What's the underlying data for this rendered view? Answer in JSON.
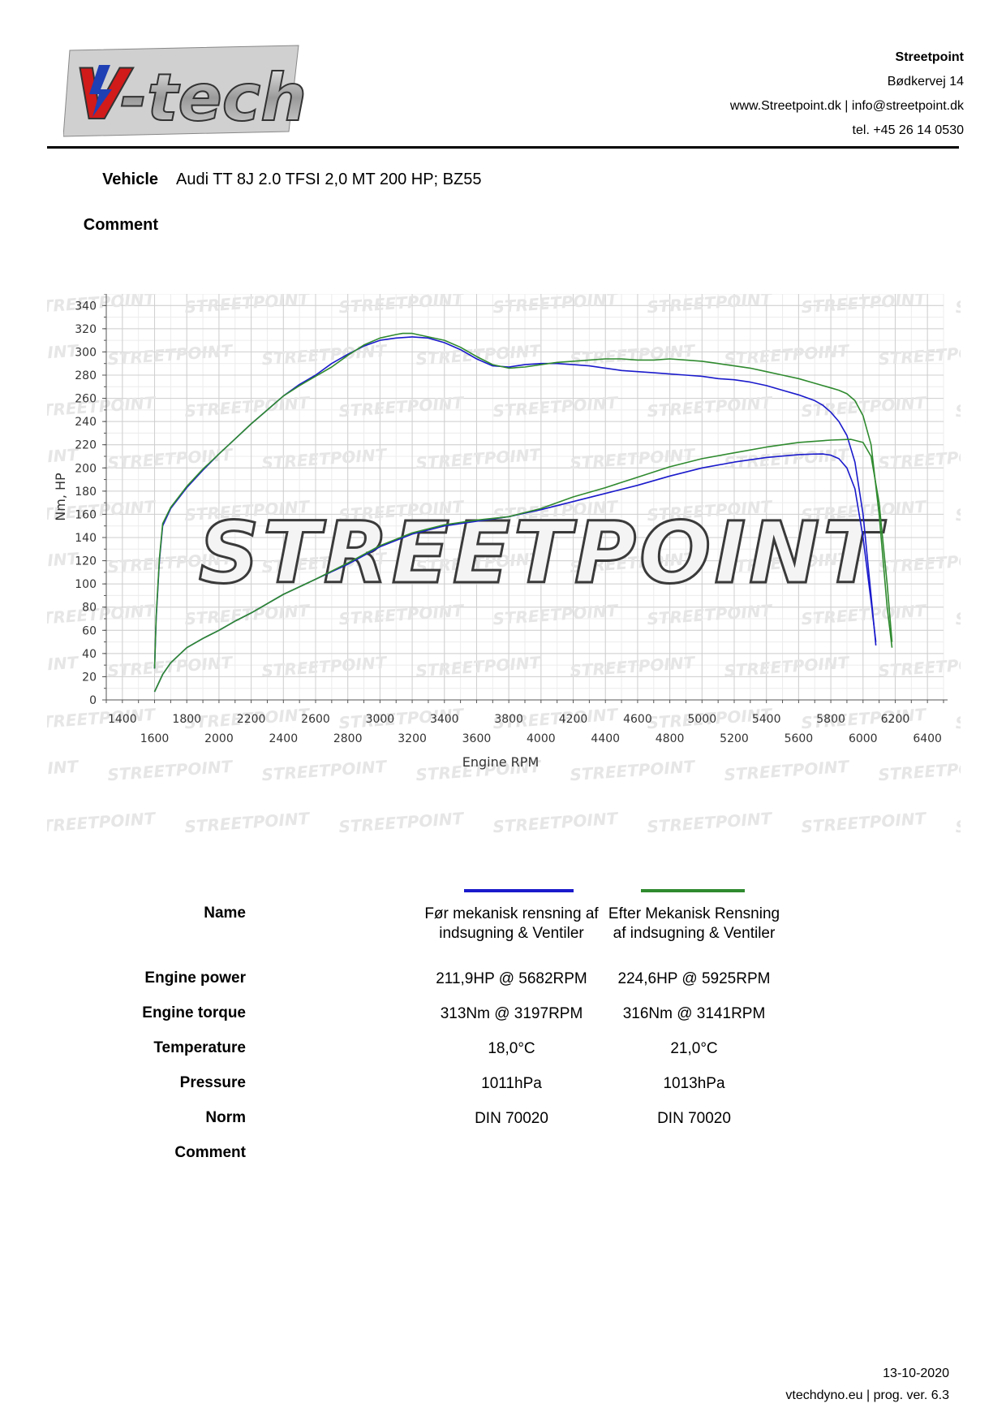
{
  "header": {
    "logo_text": "V-tech",
    "company": "Streetpoint",
    "address": "Bødkervej 14",
    "web_email": "www.Streetpoint.dk | info@streetpoint.dk",
    "phone": "tel. +45 26 14 0530"
  },
  "vehicle": {
    "label": "Vehicle",
    "value": "Audi TT 8J 2.0 TFSI 2,0 MT 200 HP; BZ55"
  },
  "comment_label": "Comment",
  "watermark_text": "STREETPOINT",
  "chart_data": {
    "type": "line",
    "ylabel": "Nm, HP",
    "xlabel": "Engine RPM",
    "xlim": [
      1300,
      6500
    ],
    "ylim": [
      0,
      350
    ],
    "y_ticks": [
      "0",
      "20",
      "40",
      "60",
      "80",
      "100",
      "120",
      "140",
      "160",
      "180",
      "200",
      "220",
      "240",
      "260",
      "280",
      "300",
      "320",
      "340"
    ],
    "x_ticks_upper": [
      "1400",
      "1800",
      "2200",
      "2600",
      "3000",
      "3400",
      "3800",
      "4200",
      "4600",
      "5000",
      "5400",
      "5800",
      "6200"
    ],
    "x_ticks_lower": [
      "1600",
      "2000",
      "2400",
      "2800",
      "3200",
      "3600",
      "4000",
      "4400",
      "4800",
      "5200",
      "5600",
      "6000",
      "6400"
    ],
    "grid": true,
    "series": [
      {
        "name": "Før mekanisk rensning af indsugning & Ventiler",
        "color": "#1a1acc",
        "torque": {
          "x": [
            1600,
            1610,
            1630,
            1650,
            1700,
            1800,
            1900,
            2000,
            2100,
            2200,
            2300,
            2400,
            2500,
            2600,
            2700,
            2800,
            2900,
            3000,
            3100,
            3200,
            3300,
            3400,
            3500,
            3600,
            3700,
            3800,
            3900,
            4000,
            4100,
            4200,
            4300,
            4400,
            4500,
            4600,
            4700,
            4800,
            4900,
            5000,
            5100,
            5200,
            5300,
            5400,
            5500,
            5600,
            5700,
            5750,
            5800,
            5850,
            5900,
            5950,
            6000,
            6050,
            6080
          ],
          "y": [
            27,
            70,
            120,
            150,
            165,
            183,
            198,
            212,
            225,
            238,
            250,
            262,
            272,
            280,
            290,
            298,
            305,
            310,
            312,
            313,
            312,
            308,
            302,
            294,
            288,
            287,
            289,
            290,
            290,
            289,
            288,
            286,
            284,
            283,
            282,
            281,
            280,
            279,
            277,
            276,
            274,
            271,
            267,
            263,
            258,
            254,
            248,
            240,
            228,
            205,
            160,
            90,
            47
          ]
        },
        "power": {
          "x": [
            1600,
            1650,
            1700,
            1800,
            1900,
            2000,
            2100,
            2200,
            2400,
            2600,
            2800,
            3000,
            3200,
            3400,
            3600,
            3800,
            4000,
            4200,
            4400,
            4600,
            4800,
            5000,
            5200,
            5400,
            5600,
            5682,
            5750,
            5800,
            5850,
            5900,
            5950,
            6000,
            6050,
            6080
          ],
          "y": [
            7,
            22,
            32,
            45,
            53,
            60,
            68,
            75,
            91,
            104,
            117,
            132,
            143,
            150,
            154,
            158,
            164,
            171,
            178,
            185,
            193,
            200,
            205,
            209,
            211.5,
            211.9,
            212,
            211,
            208,
            200,
            182,
            140,
            85,
            50
          ]
        }
      },
      {
        "name": "Efter Mekanisk Rensning af indsugning & Ventiler",
        "color": "#2f8a2f",
        "torque": {
          "x": [
            1600,
            1610,
            1630,
            1650,
            1700,
            1800,
            1900,
            2000,
            2100,
            2200,
            2300,
            2400,
            2500,
            2600,
            2700,
            2800,
            2900,
            3000,
            3100,
            3141,
            3200,
            3300,
            3400,
            3500,
            3600,
            3700,
            3800,
            3900,
            4000,
            4100,
            4200,
            4300,
            4400,
            4500,
            4600,
            4700,
            4800,
            4900,
            5000,
            5100,
            5200,
            5300,
            5400,
            5500,
            5600,
            5700,
            5800,
            5850,
            5900,
            5950,
            6000,
            6050,
            6100,
            6150,
            6180
          ],
          "y": [
            27,
            72,
            122,
            152,
            166,
            184,
            199,
            212,
            225,
            238,
            250,
            262,
            271,
            279,
            287,
            297,
            306,
            312,
            315,
            316,
            316,
            313,
            310,
            304,
            296,
            289,
            286,
            287,
            289,
            291,
            292,
            293,
            294,
            294,
            293,
            293,
            294,
            293,
            292,
            290,
            288,
            286,
            283,
            280,
            277,
            273,
            269,
            267,
            264,
            258,
            245,
            220,
            160,
            80,
            45
          ]
        },
        "power": {
          "x": [
            1600,
            1650,
            1700,
            1800,
            1900,
            2000,
            2100,
            2200,
            2400,
            2600,
            2800,
            3000,
            3200,
            3400,
            3600,
            3800,
            4000,
            4200,
            4400,
            4600,
            4800,
            5000,
            5200,
            5400,
            5600,
            5800,
            5925,
            6000,
            6050,
            6100,
            6150,
            6180
          ],
          "y": [
            7,
            22,
            32,
            45,
            53,
            60,
            68,
            75,
            91,
            104,
            118,
            133,
            144,
            151,
            155,
            158,
            165,
            175,
            183,
            192,
            201,
            208,
            213,
            218,
            222,
            224,
            224.6,
            222,
            210,
            170,
            100,
            50
          ]
        }
      }
    ]
  },
  "results": {
    "rows": [
      {
        "label": "Name",
        "values": [
          "Før mekanisk rensning af indsugning & Ventiler",
          "Efter Mekanisk Rensning af indsugning & Ventiler"
        ]
      },
      {
        "label": "Engine power",
        "values": [
          "211,9HP @  5682RPM",
          "224,6HP @  5925RPM"
        ]
      },
      {
        "label": "Engine torque",
        "values": [
          "313Nm @ 3197RPM",
          "316Nm @ 3141RPM"
        ]
      },
      {
        "label": "Temperature",
        "values": [
          "18,0°C",
          "21,0°C"
        ]
      },
      {
        "label": "Pressure",
        "values": [
          "1011hPa",
          "1013hPa"
        ]
      },
      {
        "label": "Norm",
        "values": [
          "DIN 70020",
          "DIN 70020"
        ]
      },
      {
        "label": "Comment",
        "values": [
          "",
          ""
        ]
      }
    ]
  },
  "footer": {
    "date": "13-10-2020",
    "program": "vtechdyno.eu | prog. ver. 6.3"
  }
}
